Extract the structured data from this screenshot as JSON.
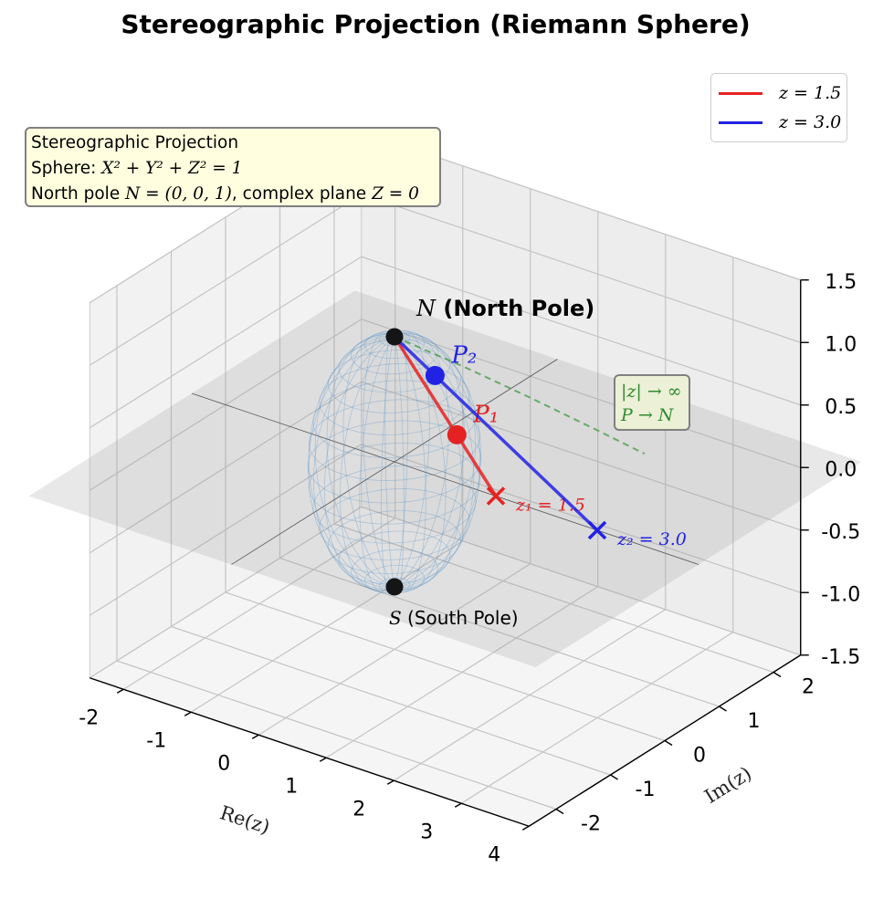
{
  "title": "Stereographic Projection (Riemann Sphere)",
  "chart_data": {
    "type": "scatter3d",
    "title": "Stereographic Projection (Riemann Sphere)",
    "xlabel": "Re(z)",
    "ylabel": "Im(z)",
    "zlabel": "",
    "x_ticks": [
      "-2",
      "-1",
      "0",
      "1",
      "2",
      "3",
      "4"
    ],
    "y_ticks": [
      "-2",
      "-1",
      "0",
      "1",
      "2"
    ],
    "z_ticks": [
      "-1.5",
      "-1.0",
      "-0.5",
      "0.0",
      "0.5",
      "1.0",
      "1.5"
    ],
    "xlim": [
      -2.5,
      4
    ],
    "ylim": [
      -2.5,
      2.5
    ],
    "zlim": [
      -1.5,
      1.5
    ],
    "grid": true,
    "legend_position": "top-right",
    "series": [
      {
        "name": "z = 1.5",
        "color": "#e52222",
        "from": [
          0,
          0,
          1
        ],
        "to": [
          1.5,
          0,
          0
        ],
        "sphere_point": [
          0.923,
          0,
          0.385
        ],
        "point_label": "P₁",
        "plane_label": "z₁ = 1.5"
      },
      {
        "name": "z = 3.0",
        "color": "#2222e5",
        "from": [
          0,
          0,
          1
        ],
        "to": [
          3.0,
          0,
          0
        ],
        "sphere_point": [
          0.6,
          0,
          0.8
        ],
        "point_label": "P₂",
        "plane_label": "z₂ = 3.0"
      }
    ],
    "poles": [
      {
        "label_math": "N",
        "label_text": " (North Pole)",
        "coords": [
          0,
          0,
          1
        ]
      },
      {
        "label_math": "S",
        "label_text": " (South Pole)",
        "coords": [
          0,
          0,
          -1
        ]
      }
    ],
    "annotations": {
      "info_lines": [
        {
          "text": "Stereographic Projection",
          "math": ""
        },
        {
          "text": "Sphere: ",
          "math": "X² + Y² + Z² = 1"
        },
        {
          "text": "North pole ",
          "math": "N = (0, 0, 1)",
          "after": ", complex plane ",
          "math2": "Z = 0"
        }
      ],
      "limit_line1": "|z| → ∞",
      "limit_line2": "P → N"
    }
  }
}
